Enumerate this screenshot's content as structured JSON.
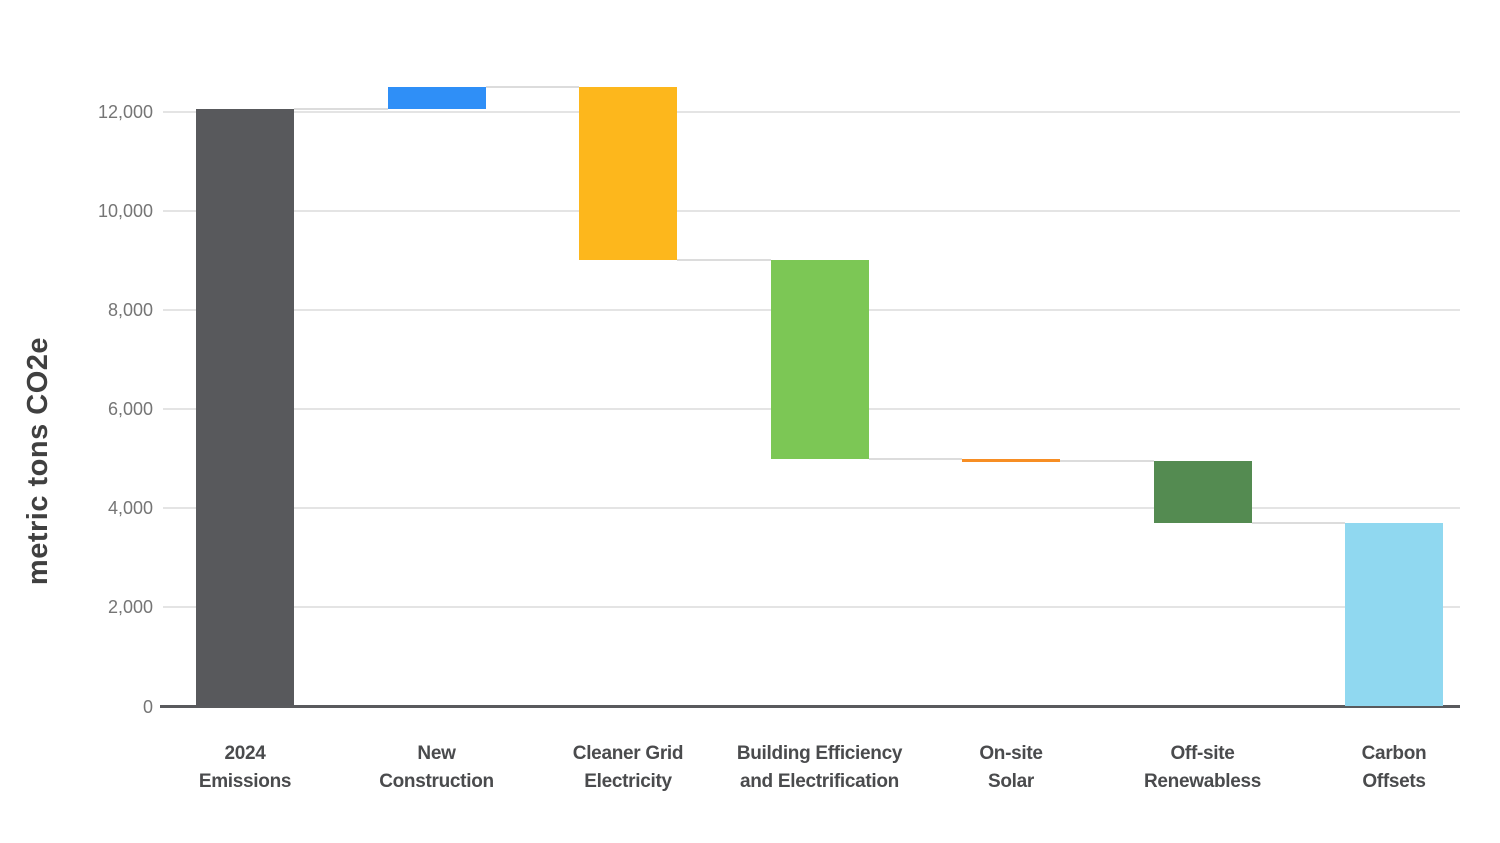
{
  "chart_data": {
    "type": "waterfall",
    "title": "",
    "xlabel": "",
    "ylabel": "metric tons CO2e",
    "y_ticks": [
      0,
      2000,
      4000,
      6000,
      8000,
      10000,
      12000
    ],
    "y_tick_labels": [
      "0",
      "2,000",
      "4,000",
      "6,000",
      "8,000",
      "10,000",
      "12,000"
    ],
    "ylim": [
      0,
      12700
    ],
    "grid": true,
    "legend": false,
    "categories": [
      "2024 Emissions",
      "New Construction",
      "Cleaner Grid Electricity",
      "Building Efficiency and Electrification",
      "On-site Solar",
      "Off-site Renewabless",
      "Carbon Offsets"
    ],
    "category_label_lines": [
      [
        "2024",
        "Emissions"
      ],
      [
        "New",
        "Construction"
      ],
      [
        "Cleaner Grid",
        "Electricity"
      ],
      [
        "Building Efficiency",
        "and Electrification"
      ],
      [
        "On-site",
        "Solar"
      ],
      [
        "Off-site",
        "Renewabless"
      ],
      [
        "Carbon",
        "Offsets"
      ]
    ],
    "bars": [
      {
        "label": "2024 Emissions",
        "start": 0,
        "end": 12050,
        "delta": 12050,
        "color": "#58595C"
      },
      {
        "label": "New Construction",
        "start": 12050,
        "end": 12500,
        "delta": 450,
        "color": "#2F8FF7"
      },
      {
        "label": "Cleaner Grid Electricity",
        "start": 12500,
        "end": 9000,
        "delta": -3500,
        "color": "#FDB71C"
      },
      {
        "label": "Building Efficiency and Electrification",
        "start": 9000,
        "end": 5000,
        "delta": -4000,
        "color": "#7CC755"
      },
      {
        "label": "On-site Solar",
        "start": 5000,
        "end": 4950,
        "delta": -50,
        "color": "#F78E24"
      },
      {
        "label": "Off-site Renewabless",
        "start": 4950,
        "end": 3700,
        "delta": -1250,
        "color": "#548B51"
      },
      {
        "label": "Carbon Offsets",
        "start": 3700,
        "end": 0,
        "delta": -3700,
        "color": "#90D8F0"
      }
    ],
    "colors": {
      "background": "#ffffff",
      "gridline": "#e4e4e4",
      "axis_line": "#595a5d",
      "connector": "#dcdcdc",
      "y_tick_text": "#757575",
      "x_tick_text": "#4a4b4d",
      "y_title_text": "#404040"
    }
  }
}
